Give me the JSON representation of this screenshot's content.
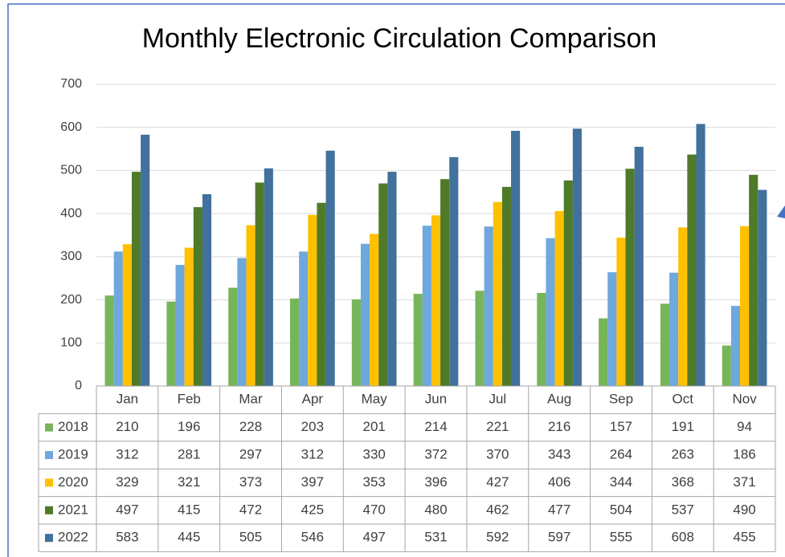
{
  "chart_data": {
    "type": "bar",
    "title": "Monthly Electronic Circulation Comparison",
    "categories": [
      "Jan",
      "Feb",
      "Mar",
      "Apr",
      "May",
      "Jun",
      "Jul",
      "Aug",
      "Sep",
      "Oct",
      "Nov"
    ],
    "series": [
      {
        "name": "2018",
        "color": "#77b55b",
        "values": [
          210,
          196,
          228,
          203,
          201,
          214,
          221,
          216,
          157,
          191,
          94
        ]
      },
      {
        "name": "2019",
        "color": "#6fa8dc",
        "values": [
          312,
          281,
          297,
          312,
          330,
          372,
          370,
          343,
          264,
          263,
          186
        ]
      },
      {
        "name": "2020",
        "color": "#ffc000",
        "values": [
          329,
          321,
          373,
          397,
          353,
          396,
          427,
          406,
          344,
          368,
          371
        ]
      },
      {
        "name": "2021",
        "color": "#4f7a2a",
        "values": [
          497,
          415,
          472,
          425,
          470,
          480,
          462,
          477,
          504,
          537,
          490
        ]
      },
      {
        "name": "2022",
        "color": "#41719c",
        "values": [
          583,
          445,
          505,
          546,
          497,
          531,
          592,
          597,
          555,
          608,
          455
        ]
      }
    ],
    "ylim": [
      0,
      700
    ],
    "yticks": [
      0,
      100,
      200,
      300,
      400,
      500,
      600,
      700
    ],
    "grid": true
  }
}
